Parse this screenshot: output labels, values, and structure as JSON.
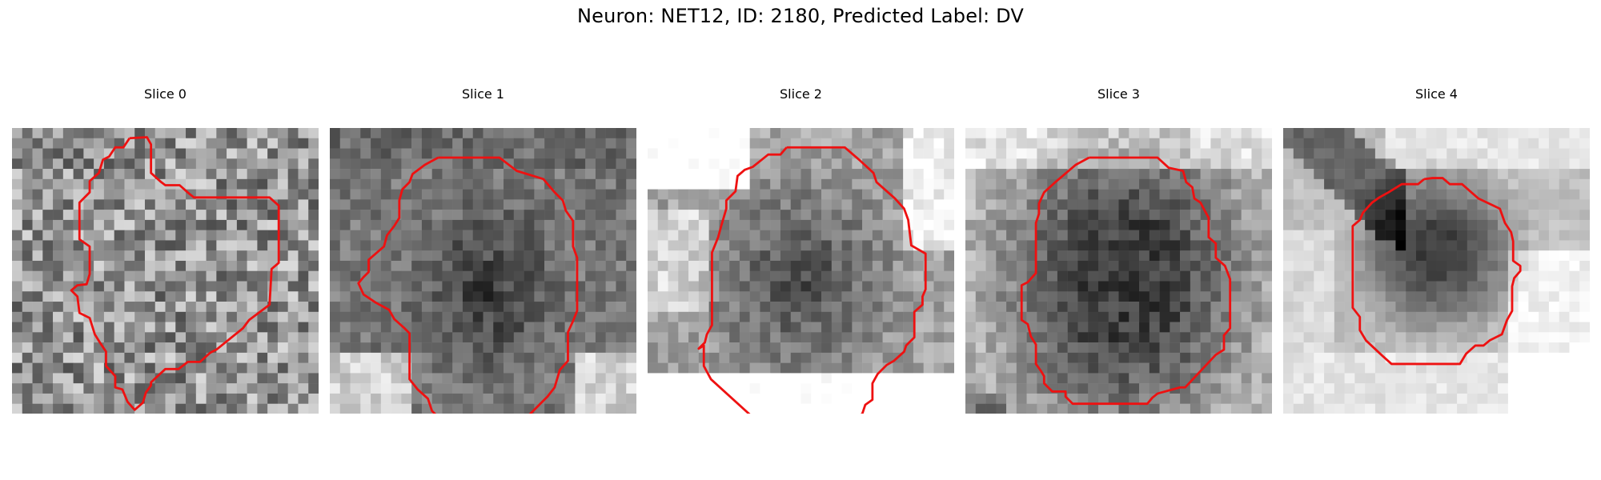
{
  "figure": {
    "title": "Neuron: NET12, ID: 2180, Predicted Label: DV"
  },
  "panels": [
    {
      "title": "Slice 0"
    },
    {
      "title": "Slice 1"
    },
    {
      "title": "Slice 2"
    },
    {
      "title": "Slice 3"
    },
    {
      "title": "Slice 4"
    }
  ],
  "colors": {
    "contour": "#ee1111",
    "colormap": "grayscale"
  }
}
